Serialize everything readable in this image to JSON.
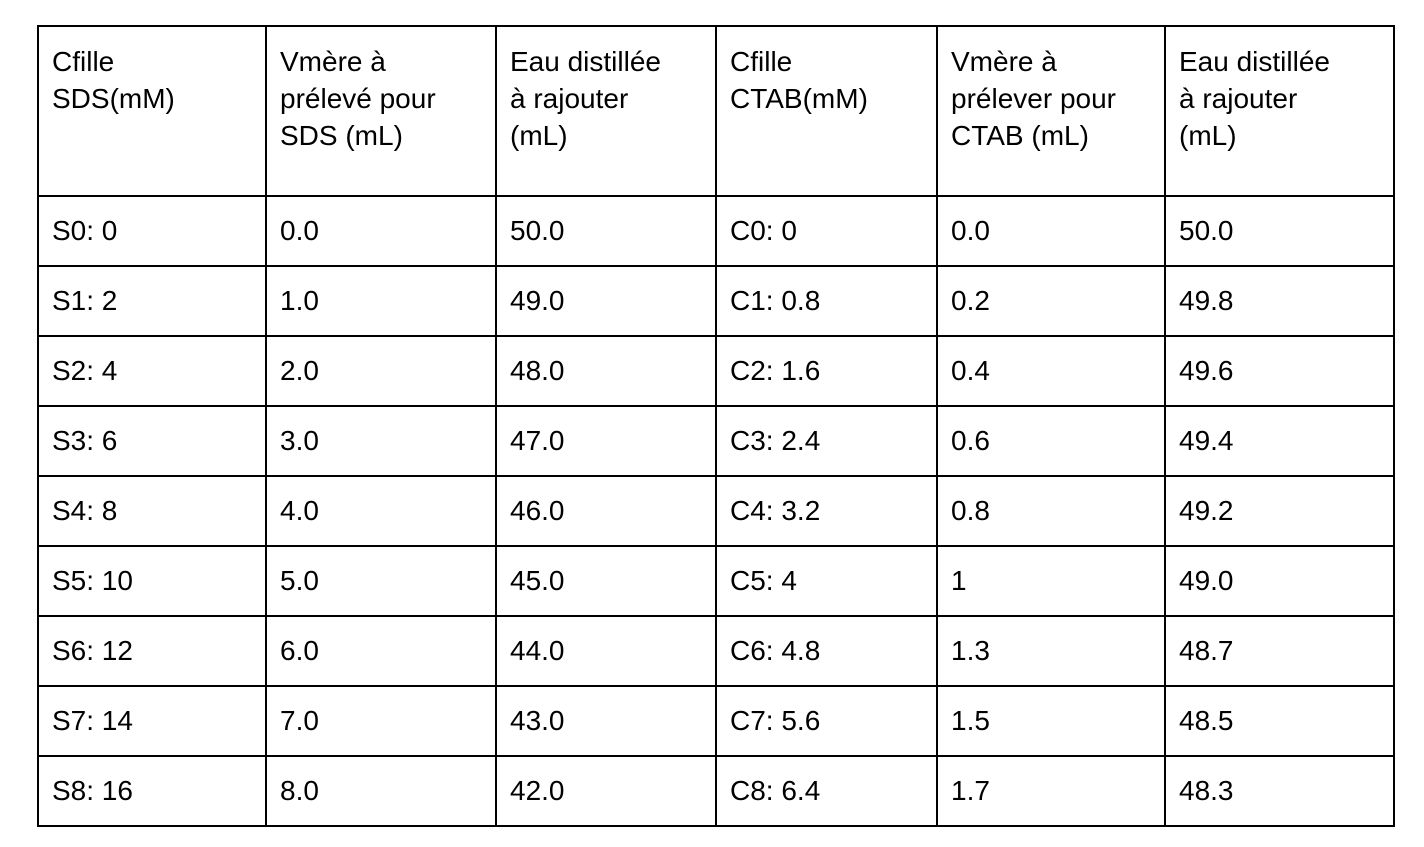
{
  "table": {
    "columns": [
      "Cfille\nSDS(mM)",
      "Vmère à\nprélevé pour\nSDS (mL)",
      "Eau distillée\nà rajouter\n(mL)",
      "Cfille\nCTAB(mM)",
      "Vmère à\nprélever pour\nCTAB (mL)",
      "Eau distillée\nà rajouter\n(mL)"
    ],
    "rows": [
      [
        "S0: 0",
        "0.0",
        "50.0",
        "C0: 0",
        "0.0",
        "50.0"
      ],
      [
        "S1: 2",
        "1.0",
        "49.0",
        "C1: 0.8",
        "0.2",
        "49.8"
      ],
      [
        "S2: 4",
        "2.0",
        "48.0",
        "C2: 1.6",
        "0.4",
        "49.6"
      ],
      [
        "S3: 6",
        "3.0",
        "47.0",
        "C3: 2.4",
        "0.6",
        "49.4"
      ],
      [
        "S4: 8",
        "4.0",
        "46.0",
        "C4: 3.2",
        "0.8",
        "49.2"
      ],
      [
        "S5: 10",
        "5.0",
        "45.0",
        "C5: 4",
        "1",
        "49.0"
      ],
      [
        "S6: 12",
        "6.0",
        "44.0",
        "C6: 4.8",
        "1.3",
        "48.7"
      ],
      [
        "S7: 14",
        "7.0",
        "43.0",
        "C7: 5.6",
        "1.5",
        "48.5"
      ],
      [
        "S8: 16",
        "8.0",
        "42.0",
        "C8: 6.4",
        "1.7",
        "48.3"
      ]
    ],
    "colors": {
      "border": "#000000",
      "text": "#000000",
      "background": "#ffffff"
    }
  }
}
